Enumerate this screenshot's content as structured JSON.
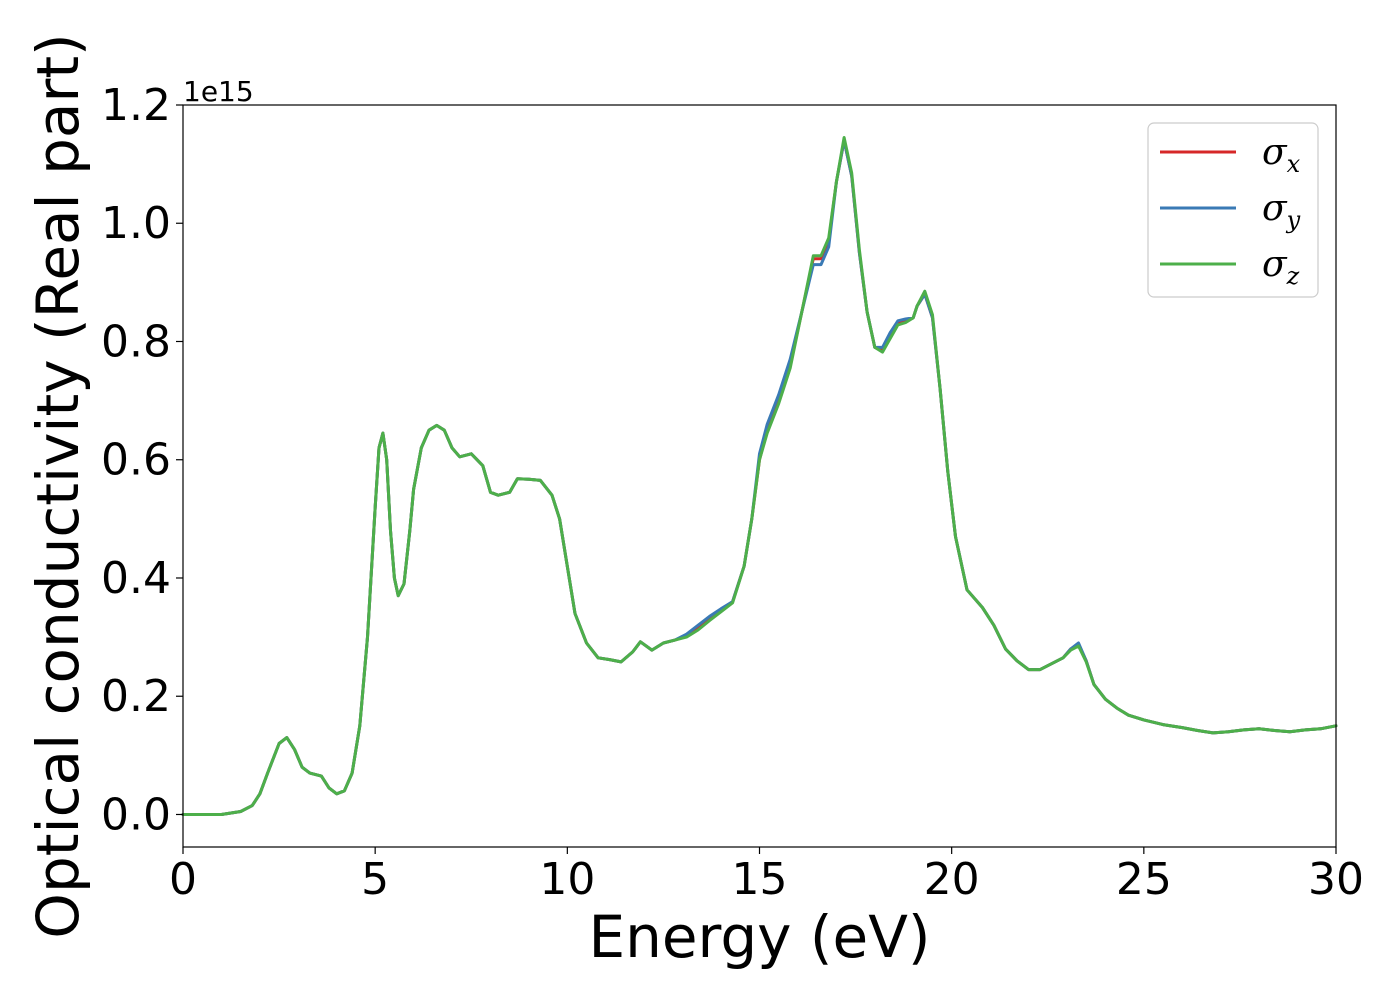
{
  "chart_data": {
    "type": "line",
    "xlabel": "Energy (eV)",
    "ylabel": "Optical conductivity (Real part)",
    "y_offset_text": "1e15",
    "xlim": [
      0,
      30
    ],
    "ylim": [
      -0.055,
      1.2
    ],
    "x_ticks": [
      0,
      5,
      10,
      15,
      20,
      25,
      30
    ],
    "x_tick_labels": [
      "0",
      "5",
      "10",
      "15",
      "20",
      "25",
      "30"
    ],
    "y_ticks": [
      0.0,
      0.2,
      0.4,
      0.6,
      0.8,
      1.0,
      1.2
    ],
    "y_tick_labels": [
      "0.0",
      "0.2",
      "0.4",
      "0.6",
      "0.8",
      "1.0",
      "1.2"
    ],
    "grid": false,
    "legend_placement": "top-right",
    "x": [
      0,
      0.5,
      1.0,
      1.5,
      1.8,
      2.0,
      2.2,
      2.5,
      2.7,
      2.9,
      3.1,
      3.3,
      3.6,
      3.8,
      4.0,
      4.2,
      4.4,
      4.6,
      4.8,
      5.0,
      5.1,
      5.2,
      5.3,
      5.4,
      5.5,
      5.6,
      5.75,
      5.9,
      6.0,
      6.2,
      6.4,
      6.6,
      6.8,
      7.0,
      7.2,
      7.5,
      7.8,
      8.0,
      8.2,
      8.5,
      8.7,
      9.0,
      9.3,
      9.6,
      9.8,
      10.0,
      10.2,
      10.5,
      10.8,
      11.1,
      11.4,
      11.7,
      11.9,
      12.2,
      12.5,
      12.8,
      13.1,
      13.4,
      13.7,
      14.0,
      14.3,
      14.6,
      14.8,
      15.0,
      15.2,
      15.5,
      15.8,
      16.1,
      16.4,
      16.6,
      16.8,
      17.0,
      17.2,
      17.4,
      17.6,
      17.8,
      18.0,
      18.2,
      18.4,
      18.6,
      18.8,
      19.0,
      19.1,
      19.3,
      19.5,
      19.7,
      19.9,
      20.1,
      20.4,
      20.8,
      21.1,
      21.4,
      21.7,
      22.0,
      22.3,
      22.6,
      22.9,
      23.1,
      23.3,
      23.5,
      23.7,
      24.0,
      24.3,
      24.6,
      25.0,
      25.5,
      26.0,
      26.4,
      26.8,
      27.2,
      27.6,
      28.0,
      28.4,
      28.8,
      29.2,
      29.6,
      30.0
    ],
    "series": [
      {
        "name": "σx",
        "color": "#d62728",
        "values": [
          0.0,
          0.0,
          0.0,
          0.005,
          0.015,
          0.035,
          0.07,
          0.12,
          0.13,
          0.11,
          0.08,
          0.07,
          0.065,
          0.045,
          0.035,
          0.04,
          0.07,
          0.15,
          0.3,
          0.52,
          0.62,
          0.645,
          0.6,
          0.48,
          0.4,
          0.37,
          0.39,
          0.48,
          0.55,
          0.62,
          0.65,
          0.658,
          0.65,
          0.62,
          0.605,
          0.61,
          0.59,
          0.545,
          0.54,
          0.545,
          0.568,
          0.567,
          0.565,
          0.54,
          0.5,
          0.42,
          0.34,
          0.29,
          0.265,
          0.262,
          0.258,
          0.275,
          0.292,
          0.278,
          0.29,
          0.295,
          0.302,
          0.315,
          0.33,
          0.345,
          0.36,
          0.42,
          0.5,
          0.6,
          0.65,
          0.7,
          0.76,
          0.85,
          0.94,
          0.94,
          0.97,
          1.07,
          1.14,
          1.08,
          0.95,
          0.85,
          0.79,
          0.785,
          0.81,
          0.83,
          0.835,
          0.84,
          0.86,
          0.88,
          0.84,
          0.72,
          0.58,
          0.47,
          0.38,
          0.35,
          0.32,
          0.28,
          0.26,
          0.245,
          0.245,
          0.255,
          0.265,
          0.28,
          0.288,
          0.26,
          0.22,
          0.195,
          0.18,
          0.168,
          0.16,
          0.152,
          0.147,
          0.142,
          0.138,
          0.14,
          0.143,
          0.145,
          0.142,
          0.14,
          0.143,
          0.145,
          0.15
        ]
      },
      {
        "name": "σy",
        "color": "#3a7ab5",
        "values": [
          0.0,
          0.0,
          0.0,
          0.005,
          0.015,
          0.035,
          0.07,
          0.12,
          0.13,
          0.11,
          0.08,
          0.07,
          0.065,
          0.045,
          0.035,
          0.04,
          0.07,
          0.15,
          0.3,
          0.52,
          0.62,
          0.645,
          0.6,
          0.48,
          0.4,
          0.37,
          0.39,
          0.48,
          0.55,
          0.62,
          0.65,
          0.658,
          0.65,
          0.62,
          0.605,
          0.61,
          0.59,
          0.545,
          0.54,
          0.545,
          0.568,
          0.567,
          0.565,
          0.54,
          0.5,
          0.42,
          0.34,
          0.29,
          0.265,
          0.262,
          0.258,
          0.275,
          0.292,
          0.278,
          0.29,
          0.295,
          0.305,
          0.32,
          0.335,
          0.348,
          0.36,
          0.42,
          0.5,
          0.61,
          0.66,
          0.71,
          0.77,
          0.85,
          0.93,
          0.93,
          0.96,
          1.07,
          1.14,
          1.08,
          0.95,
          0.85,
          0.79,
          0.79,
          0.815,
          0.835,
          0.838,
          0.84,
          0.86,
          0.88,
          0.84,
          0.72,
          0.58,
          0.47,
          0.38,
          0.35,
          0.32,
          0.28,
          0.26,
          0.245,
          0.245,
          0.255,
          0.265,
          0.28,
          0.29,
          0.26,
          0.22,
          0.195,
          0.18,
          0.168,
          0.16,
          0.152,
          0.147,
          0.142,
          0.138,
          0.14,
          0.143,
          0.145,
          0.142,
          0.14,
          0.143,
          0.145,
          0.15
        ]
      },
      {
        "name": "σz",
        "color": "#4daf4a",
        "values": [
          0.0,
          0.0,
          0.0,
          0.005,
          0.015,
          0.035,
          0.07,
          0.12,
          0.13,
          0.11,
          0.08,
          0.07,
          0.065,
          0.045,
          0.035,
          0.04,
          0.07,
          0.15,
          0.3,
          0.52,
          0.62,
          0.645,
          0.6,
          0.48,
          0.4,
          0.37,
          0.39,
          0.48,
          0.55,
          0.62,
          0.65,
          0.658,
          0.65,
          0.62,
          0.605,
          0.61,
          0.59,
          0.545,
          0.54,
          0.545,
          0.568,
          0.567,
          0.565,
          0.54,
          0.5,
          0.42,
          0.34,
          0.29,
          0.265,
          0.262,
          0.258,
          0.275,
          0.292,
          0.278,
          0.29,
          0.295,
          0.3,
          0.312,
          0.328,
          0.343,
          0.358,
          0.42,
          0.5,
          0.6,
          0.645,
          0.695,
          0.755,
          0.85,
          0.945,
          0.945,
          0.975,
          1.07,
          1.145,
          1.085,
          0.955,
          0.85,
          0.79,
          0.782,
          0.805,
          0.828,
          0.832,
          0.84,
          0.86,
          0.885,
          0.845,
          0.72,
          0.58,
          0.47,
          0.38,
          0.35,
          0.32,
          0.28,
          0.26,
          0.245,
          0.245,
          0.255,
          0.265,
          0.278,
          0.285,
          0.258,
          0.22,
          0.195,
          0.18,
          0.168,
          0.16,
          0.152,
          0.147,
          0.142,
          0.138,
          0.14,
          0.143,
          0.145,
          0.142,
          0.14,
          0.143,
          0.145,
          0.15
        ]
      }
    ],
    "legend": [
      {
        "symbol": "σ",
        "sub": "x",
        "color": "#d62728"
      },
      {
        "symbol": "σ",
        "sub": "y",
        "color": "#3a7ab5"
      },
      {
        "symbol": "σ",
        "sub": "z",
        "color": "#4daf4a"
      }
    ]
  }
}
